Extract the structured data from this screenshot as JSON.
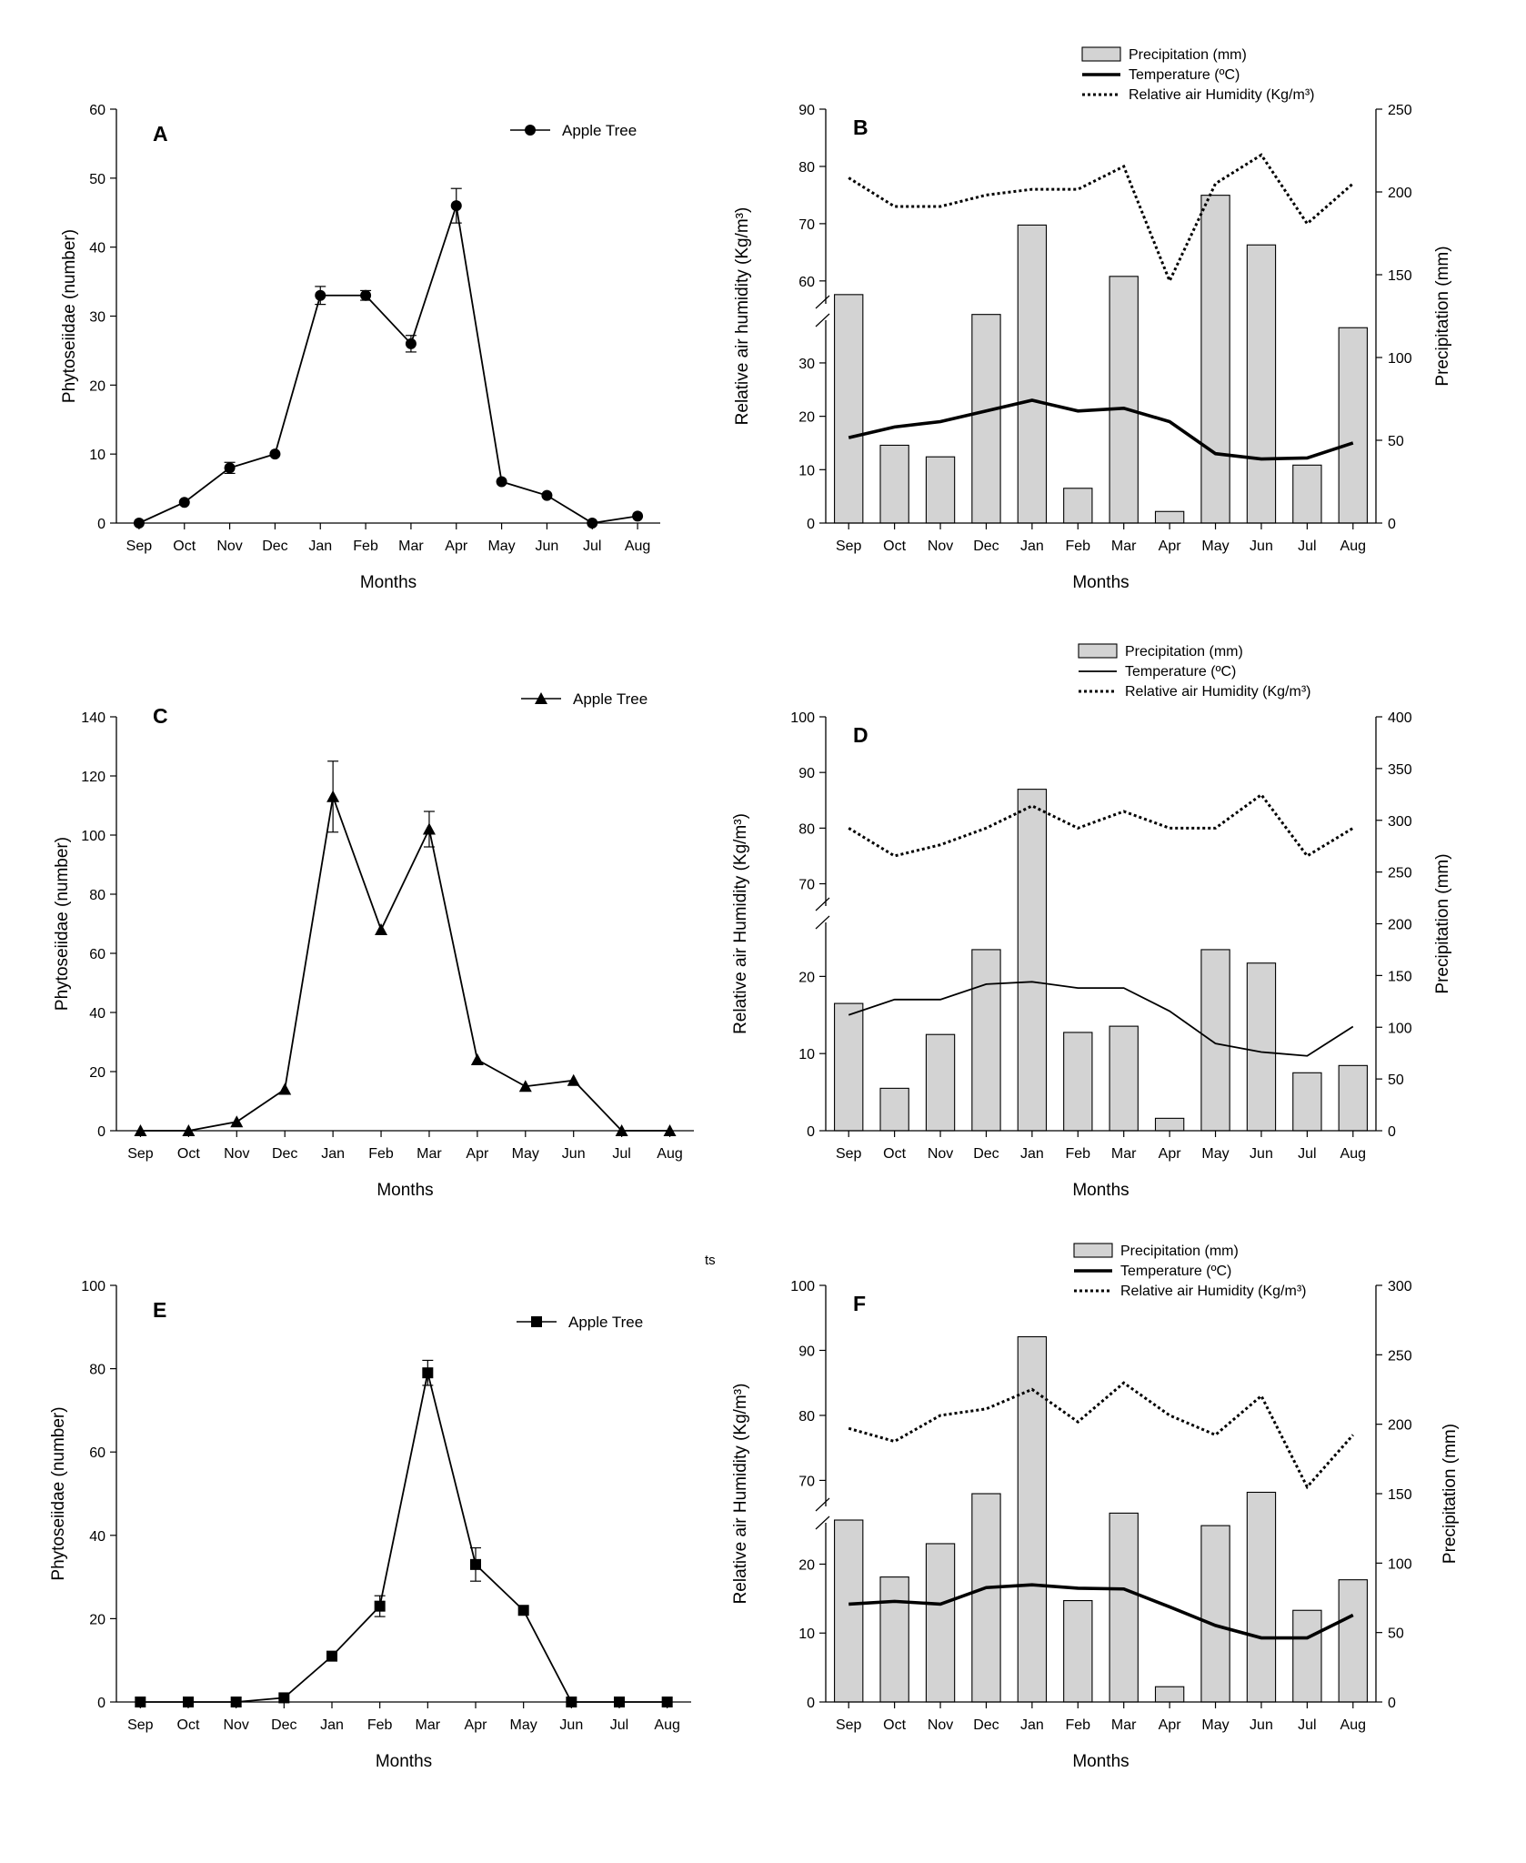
{
  "stray_text": "ts",
  "chart_data": [
    {
      "panel": "A",
      "type": "line",
      "categories": [
        "Sep",
        "Oct",
        "Nov",
        "Dec",
        "Jan",
        "Feb",
        "Mar",
        "Apr",
        "May",
        "Jun",
        "Jul",
        "Aug"
      ],
      "series": [
        {
          "name": "Apple Tree",
          "marker": "circle",
          "values": [
            0,
            3,
            8,
            10,
            33,
            33,
            26,
            46,
            6,
            4,
            0,
            1
          ],
          "error": [
            0,
            0,
            0.8,
            0,
            1.3,
            0.7,
            1.2,
            2.5,
            0,
            0,
            0,
            0
          ]
        }
      ],
      "xlabel": "Months",
      "ylabel": "Phytoseiidae (number)",
      "ylim": [
        0,
        60
      ],
      "yticks": [
        0,
        10,
        20,
        30,
        40,
        50,
        60
      ],
      "legend": "top-right",
      "grid": false
    },
    {
      "panel": "B",
      "type": "bar",
      "categories": [
        "Sep",
        "Oct",
        "Nov",
        "Dec",
        "Jan",
        "Feb",
        "Mar",
        "Apr",
        "May",
        "Jun",
        "Jul",
        "Aug"
      ],
      "precipitation": [
        138,
        47,
        40,
        126,
        180,
        21,
        149,
        7,
        198,
        168,
        35,
        118
      ],
      "temperature": [
        16,
        18,
        19,
        21,
        23,
        21,
        21.5,
        19,
        13,
        12,
        12.2,
        15
      ],
      "humidity": [
        78,
        73,
        73,
        75,
        76,
        76,
        80,
        60,
        77,
        82,
        70,
        77
      ],
      "legend": [
        "Precipitation (mm)",
        "Temperature (ºC)",
        "Relative air Humidity (Kg/m³)"
      ],
      "temperature_line": "thick",
      "xlabel": "Months",
      "ylabel_left": "Relative air humidity (Kg/m³)",
      "ylabel_right": "Precipitation (mm)",
      "left_lower_ticks": [
        0,
        10,
        20,
        30
      ],
      "left_upper_ticks": [
        60,
        70,
        80,
        90
      ],
      "right_ticks": [
        0,
        50,
        100,
        150,
        200,
        250
      ],
      "ylim_right": [
        0,
        250
      ],
      "lower_range": [
        0,
        38
      ],
      "upper_range": [
        56,
        90
      ]
    },
    {
      "panel": "C",
      "type": "line",
      "categories": [
        "Sep",
        "Oct",
        "Nov",
        "Dec",
        "Jan",
        "Feb",
        "Mar",
        "Apr",
        "May",
        "Jun",
        "Jul",
        "Aug"
      ],
      "series": [
        {
          "name": "Apple Tree",
          "marker": "triangle",
          "values": [
            0,
            0,
            3,
            14,
            113,
            68,
            102,
            24,
            15,
            17,
            0,
            0
          ],
          "error": [
            0,
            0,
            0,
            0,
            12,
            0,
            6,
            0,
            0,
            0,
            0,
            0
          ]
        }
      ],
      "xlabel": "Months",
      "ylabel": "Phytoseiidae (number)",
      "ylim": [
        0,
        140
      ],
      "yticks": [
        0,
        20,
        40,
        60,
        80,
        100,
        120,
        140
      ],
      "legend": "top-right",
      "grid": false
    },
    {
      "panel": "D",
      "type": "bar",
      "categories": [
        "Sep",
        "Oct",
        "Nov",
        "Dec",
        "Jan",
        "Feb",
        "Mar",
        "Apr",
        "May",
        "Jun",
        "Jul",
        "Aug"
      ],
      "precipitation": [
        123,
        41,
        93,
        175,
        330,
        95,
        101,
        12,
        175,
        162,
        56,
        63
      ],
      "temperature": [
        15,
        17,
        17,
        19,
        19.3,
        18.5,
        18.5,
        15.5,
        11.3,
        10.2,
        9.7,
        13.5
      ],
      "humidity": [
        80,
        75,
        77,
        80,
        84,
        80,
        83,
        80,
        80,
        86,
        75,
        80
      ],
      "legend": [
        "Precipitation (mm)",
        "Temperature (ºC)",
        "Relative air Humidity (Kg/m³)"
      ],
      "temperature_line": "thin",
      "xlabel": "Months",
      "ylabel_left": "Relative air Humidity (Kg/m³)",
      "ylabel_right": "Precipitation (mm)",
      "left_lower_ticks": [
        0,
        10,
        20
      ],
      "left_upper_ticks": [
        70,
        80,
        90,
        100
      ],
      "right_ticks": [
        0,
        50,
        100,
        150,
        200,
        250,
        300,
        350,
        400
      ],
      "ylim_right": [
        0,
        400
      ],
      "lower_range": [
        0,
        27
      ],
      "upper_range": [
        66,
        100
      ]
    },
    {
      "panel": "E",
      "type": "line",
      "categories": [
        "Sep",
        "Oct",
        "Nov",
        "Dec",
        "Jan",
        "Feb",
        "Mar",
        "Apr",
        "May",
        "Jun",
        "Jul",
        "Aug"
      ],
      "series": [
        {
          "name": "Apple Tree",
          "marker": "square",
          "values": [
            0,
            0,
            0,
            1,
            11,
            23,
            79,
            33,
            22,
            0,
            0,
            0
          ],
          "error": [
            0,
            0,
            0,
            0,
            0,
            2.5,
            3,
            4,
            0,
            0,
            0,
            0
          ]
        }
      ],
      "xlabel": "Months",
      "ylabel": "Phytoseiidae (number)",
      "ylim": [
        0,
        100
      ],
      "yticks": [
        0,
        20,
        40,
        60,
        80,
        100
      ],
      "legend": "top-right",
      "grid": false
    },
    {
      "panel": "F",
      "type": "bar",
      "categories": [
        "Sep",
        "Oct",
        "Nov",
        "Dec",
        "Jan",
        "Feb",
        "Mar",
        "Apr",
        "May",
        "Jun",
        "Jul",
        "Aug"
      ],
      "precipitation": [
        131,
        90,
        114,
        150,
        263,
        73,
        136,
        11,
        127,
        151,
        66,
        88
      ],
      "temperature": [
        14.2,
        14.6,
        14.2,
        16.6,
        17,
        16.5,
        16.4,
        13.8,
        11.1,
        9.3,
        9.3,
        12.6
      ],
      "humidity": [
        78,
        76,
        80,
        81,
        84,
        79,
        85,
        80,
        77,
        83,
        69,
        77
      ],
      "legend": [
        "Precipitation (mm)",
        "Temperature (ºC)",
        "Relative air Humidity (Kg/m³)"
      ],
      "temperature_line": "thick",
      "xlabel": "Months",
      "ylabel_left": "Relative air Humidity (Kg/m³)",
      "ylabel_right": "Precipitation (mm)",
      "left_lower_ticks": [
        0,
        10,
        20
      ],
      "left_upper_ticks": [
        70,
        80,
        90,
        100
      ],
      "right_ticks": [
        0,
        50,
        100,
        150,
        200,
        250,
        300
      ],
      "ylim_right": [
        0,
        300
      ],
      "lower_range": [
        0,
        26
      ],
      "upper_range": [
        66,
        100
      ]
    }
  ],
  "colors": {
    "bar_fill": "#d3d3d3",
    "ink": "#000000"
  }
}
